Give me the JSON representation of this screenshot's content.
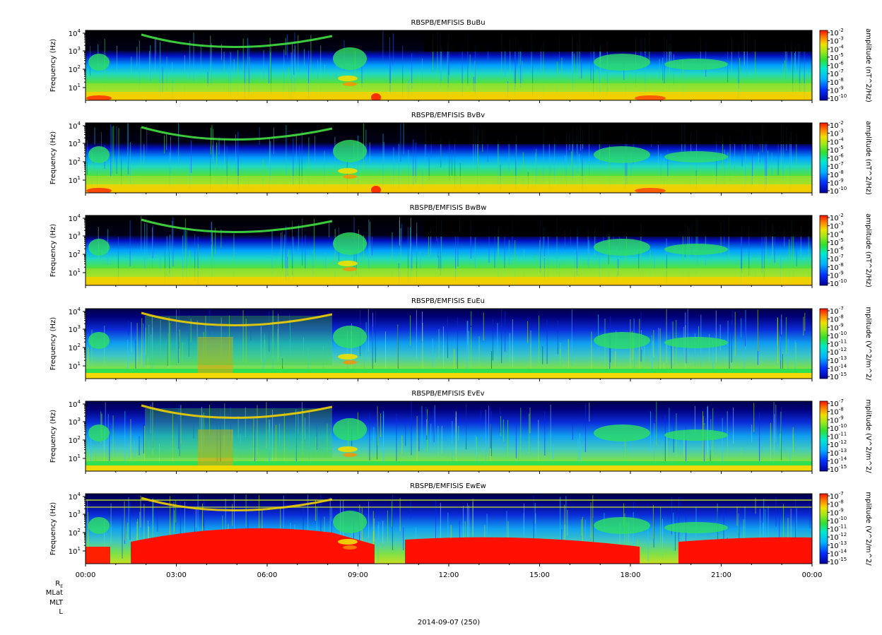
{
  "date_label": "2014-09-07 (250)",
  "ephemeris_labels": [
    "R",
    "MLat",
    "MLT",
    "L"
  ],
  "ephemeris_subscript": "E",
  "chart_data": [
    {
      "type": "heatmap",
      "title": "RBSPB/EMFISIS  BuBu",
      "ylabel": "Frequency (Hz)",
      "y_scale": "log",
      "y_ticks": [
        "10^1",
        "10^2",
        "10^3",
        "10^4"
      ],
      "x_ticks": [
        "00:00",
        "03:00",
        "06:00",
        "09:00",
        "12:00",
        "15:00",
        "18:00",
        "21:00",
        "00:00"
      ],
      "colorbar_label": "amplitude (nT^2/Hz)",
      "colorbar_ticks": [
        "10^-2",
        "10^-3",
        "10^-4",
        "10^-5",
        "10^-6",
        "10^-7",
        "10^-8",
        "10^-9",
        "10^-10"
      ],
      "colorbar_range": [
        1e-10,
        0.01
      ]
    },
    {
      "type": "heatmap",
      "title": "RBSPB/EMFISIS  BvBv",
      "ylabel": "Frequency (Hz)",
      "y_scale": "log",
      "y_ticks": [
        "10^1",
        "10^2",
        "10^3",
        "10^4"
      ],
      "x_ticks": [
        "00:00",
        "03:00",
        "06:00",
        "09:00",
        "12:00",
        "15:00",
        "18:00",
        "21:00",
        "00:00"
      ],
      "colorbar_label": "amplitude (nT^2/Hz)",
      "colorbar_ticks": [
        "10^-2",
        "10^-3",
        "10^-4",
        "10^-5",
        "10^-6",
        "10^-7",
        "10^-8",
        "10^-9",
        "10^-10"
      ],
      "colorbar_range": [
        1e-10,
        0.01
      ]
    },
    {
      "type": "heatmap",
      "title": "RBSPB/EMFISIS  BwBw",
      "ylabel": "Frequency (Hz)",
      "y_scale": "log",
      "y_ticks": [
        "10^1",
        "10^2",
        "10^3",
        "10^4"
      ],
      "x_ticks": [
        "00:00",
        "03:00",
        "06:00",
        "09:00",
        "12:00",
        "15:00",
        "18:00",
        "21:00",
        "00:00"
      ],
      "colorbar_label": "amplitude (nT^2/Hz)",
      "colorbar_ticks": [
        "10^-2",
        "10^-3",
        "10^-4",
        "10^-5",
        "10^-6",
        "10^-7",
        "10^-8",
        "10^-9",
        "10^-10"
      ],
      "colorbar_range": [
        1e-10,
        0.01
      ]
    },
    {
      "type": "heatmap",
      "title": "RBSPB/EMFISIS  EuEu",
      "ylabel": "Frequency (Hz)",
      "y_scale": "log",
      "y_ticks": [
        "10^1",
        "10^2",
        "10^3",
        "10^4"
      ],
      "x_ticks": [
        "00:00",
        "03:00",
        "06:00",
        "09:00",
        "12:00",
        "15:00",
        "18:00",
        "21:00",
        "00:00"
      ],
      "colorbar_label": "mplitude (V^2/m^2/",
      "colorbar_ticks": [
        "10^-7",
        "10^-8",
        "10^-9",
        "10^-10",
        "10^-11",
        "10^-12",
        "10^-13",
        "10^-14",
        "10^-15"
      ],
      "colorbar_range": [
        1e-15,
        1e-07
      ]
    },
    {
      "type": "heatmap",
      "title": "RBSPB/EMFISIS  EvEv",
      "ylabel": "Frequency (Hz)",
      "y_scale": "log",
      "y_ticks": [
        "10^1",
        "10^2",
        "10^3",
        "10^4"
      ],
      "x_ticks": [
        "00:00",
        "03:00",
        "06:00",
        "09:00",
        "12:00",
        "15:00",
        "18:00",
        "21:00",
        "00:00"
      ],
      "colorbar_label": "mplitude (V^2/m^2/",
      "colorbar_ticks": [
        "10^-7",
        "10^-8",
        "10^-9",
        "10^-10",
        "10^-11",
        "10^-12",
        "10^-13",
        "10^-14",
        "10^-15"
      ],
      "colorbar_range": [
        1e-15,
        1e-07
      ]
    },
    {
      "type": "heatmap",
      "title": "RBSPB/EMFISIS  EwEw",
      "ylabel": "Frequency (Hz)",
      "y_scale": "log",
      "y_ticks": [
        "10^1",
        "10^2",
        "10^3",
        "10^4"
      ],
      "x_ticks": [
        "00:00",
        "03:00",
        "06:00",
        "09:00",
        "12:00",
        "15:00",
        "18:00",
        "21:00",
        "00:00"
      ],
      "x_ticklabels_shown": true,
      "colorbar_label": "mplitude (V^2/m^2/",
      "colorbar_ticks": [
        "10^-7",
        "10^-8",
        "10^-9",
        "10^-10",
        "10^-11",
        "10^-12",
        "10^-13",
        "10^-14",
        "10^-15"
      ],
      "colorbar_range": [
        1e-15,
        1e-07
      ]
    }
  ]
}
